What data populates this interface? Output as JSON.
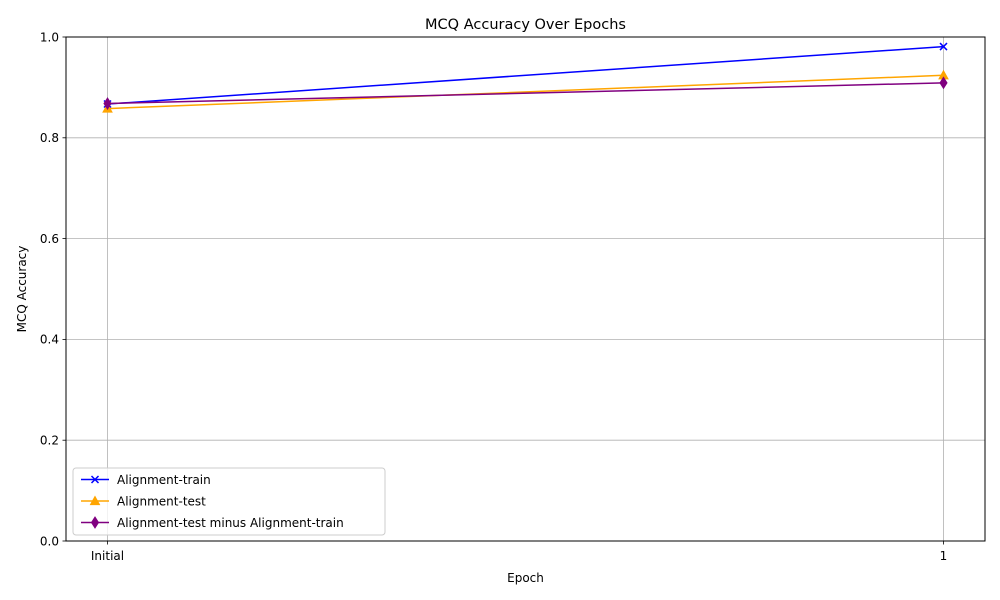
{
  "chart_data": {
    "type": "line",
    "title": "MCQ Accuracy Over Epochs",
    "xlabel": "Epoch",
    "ylabel": "MCQ Accuracy",
    "categories": [
      "Initial",
      "1"
    ],
    "ylim": [
      0,
      1
    ],
    "yticks": [
      "0.0",
      "0.2",
      "0.4",
      "0.6",
      "0.8",
      "1.0"
    ],
    "grid": true,
    "legend_position": "lower-left",
    "series": [
      {
        "name": "Alignment-train",
        "values": [
          0.867,
          0.981
        ],
        "color": "#0000ff",
        "marker": "x"
      },
      {
        "name": "Alignment-test",
        "values": [
          0.858,
          0.924
        ],
        "color": "#ffa500",
        "marker": "triangle"
      },
      {
        "name": "Alignment-test minus Alignment-train",
        "values": [
          0.868,
          0.909
        ],
        "color": "#800080",
        "marker": "diamond"
      }
    ]
  }
}
